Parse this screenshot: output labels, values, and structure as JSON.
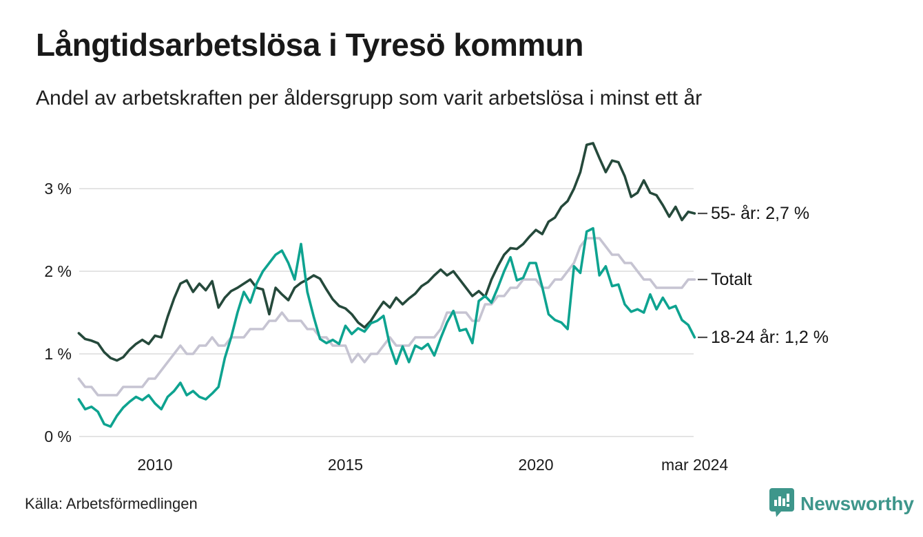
{
  "header": {
    "title": "Långtidsarbetslösa i Tyresö kommun",
    "subtitle": "Andel av arbetskraften per åldersgrupp som varit arbetslösa i minst ett år"
  },
  "chart_data": {
    "type": "line",
    "title": "Långtidsarbetslösa i Tyresö kommun",
    "subtitle": "Andel av arbetskraften per åldersgrupp som varit arbetslösa i minst ett år",
    "unit": "% av arbetskraften",
    "x_start_year": 2008,
    "x_step_years": 0.166667,
    "x_end_label_year": 2024.17,
    "grid": true,
    "legend_position": "right-end-labels",
    "colors": {
      "age_55": "#25493b",
      "total": "#c6c4d2",
      "age_18_24": "#0ea390",
      "gridline": "#e4e4e4",
      "legend_dash": "#4d4d4d",
      "brand_teal": "#3e968b"
    },
    "y_axis": {
      "range": [
        0,
        3.7
      ],
      "ticks": [
        {
          "label": "0 %",
          "value": 0
        },
        {
          "label": "1 %",
          "value": 1
        },
        {
          "label": "2 %",
          "value": 2
        },
        {
          "label": "3 %",
          "value": 3
        }
      ]
    },
    "x_axis": {
      "ticks": [
        {
          "label": "2010",
          "year": 2010
        },
        {
          "label": "2015",
          "year": 2015
        },
        {
          "label": "2020",
          "year": 2020
        },
        {
          "label": "mar 2024",
          "year": 2024.17
        }
      ]
    },
    "series": [
      {
        "id": "55-ar",
        "name": "55- år",
        "end_label": "55- år: 2,7 %",
        "last_value_label": "2,7 %",
        "color": "#25493b",
        "values": [
          1.25,
          1.18,
          1.16,
          1.13,
          1.02,
          0.95,
          0.92,
          0.96,
          1.05,
          1.12,
          1.17,
          1.12,
          1.22,
          1.2,
          1.45,
          1.67,
          1.85,
          1.89,
          1.75,
          1.85,
          1.77,
          1.88,
          1.56,
          1.68,
          1.76,
          1.8,
          1.85,
          1.9,
          1.8,
          1.78,
          1.48,
          1.8,
          1.72,
          1.65,
          1.8,
          1.86,
          1.9,
          1.95,
          1.91,
          1.78,
          1.66,
          1.58,
          1.55,
          1.48,
          1.38,
          1.32,
          1.4,
          1.52,
          1.63,
          1.56,
          1.68,
          1.6,
          1.67,
          1.73,
          1.82,
          1.87,
          1.95,
          2.02,
          1.95,
          2.0,
          1.9,
          1.8,
          1.7,
          1.76,
          1.69,
          1.9,
          2.06,
          2.2,
          2.28,
          2.27,
          2.33,
          2.42,
          2.5,
          2.45,
          2.6,
          2.65,
          2.78,
          2.85,
          3.0,
          3.2,
          3.53,
          3.55,
          3.37,
          3.2,
          3.34,
          3.32,
          3.15,
          2.9,
          2.95,
          3.1,
          2.95,
          2.92,
          2.8,
          2.66,
          2.78,
          2.62,
          2.72,
          2.7
        ]
      },
      {
        "id": "totalt",
        "name": "Totalt",
        "end_label": "Totalt",
        "last_value_label": "1,9 %",
        "color": "#c6c4d2",
        "values": [
          0.7,
          0.6,
          0.6,
          0.5,
          0.5,
          0.5,
          0.5,
          0.6,
          0.6,
          0.6,
          0.6,
          0.7,
          0.7,
          0.8,
          0.9,
          1.0,
          1.1,
          1.0,
          1.0,
          1.1,
          1.1,
          1.2,
          1.1,
          1.1,
          1.2,
          1.2,
          1.2,
          1.3,
          1.3,
          1.3,
          1.4,
          1.4,
          1.5,
          1.4,
          1.4,
          1.4,
          1.3,
          1.3,
          1.2,
          1.2,
          1.1,
          1.1,
          1.1,
          0.9,
          1.0,
          0.9,
          1.0,
          1.0,
          1.1,
          1.2,
          1.1,
          1.1,
          1.1,
          1.2,
          1.2,
          1.2,
          1.2,
          1.3,
          1.5,
          1.5,
          1.5,
          1.5,
          1.4,
          1.4,
          1.6,
          1.6,
          1.7,
          1.7,
          1.8,
          1.8,
          1.9,
          1.9,
          1.9,
          1.8,
          1.8,
          1.9,
          1.9,
          2.0,
          2.1,
          2.3,
          2.4,
          2.4,
          2.4,
          2.3,
          2.2,
          2.2,
          2.1,
          2.1,
          2.0,
          1.9,
          1.9,
          1.8,
          1.8,
          1.8,
          1.8,
          1.8,
          1.9,
          1.9
        ]
      },
      {
        "id": "18-24-ar",
        "name": "18-24 år",
        "end_label": "18-24 år: 1,2 %",
        "last_value_label": "1,2 %",
        "color": "#0ea390",
        "values": [
          0.45,
          0.33,
          0.36,
          0.3,
          0.15,
          0.12,
          0.25,
          0.35,
          0.42,
          0.48,
          0.44,
          0.5,
          0.4,
          0.33,
          0.48,
          0.55,
          0.65,
          0.5,
          0.55,
          0.48,
          0.45,
          0.52,
          0.6,
          0.95,
          1.2,
          1.5,
          1.75,
          1.62,
          1.85,
          2.0,
          2.1,
          2.2,
          2.25,
          2.1,
          1.9,
          2.33,
          1.75,
          1.45,
          1.18,
          1.13,
          1.17,
          1.12,
          1.34,
          1.24,
          1.31,
          1.27,
          1.37,
          1.4,
          1.46,
          1.1,
          0.88,
          1.09,
          0.9,
          1.1,
          1.06,
          1.12,
          0.98,
          1.19,
          1.38,
          1.52,
          1.28,
          1.3,
          1.13,
          1.64,
          1.7,
          1.62,
          1.8,
          2.0,
          2.17,
          1.89,
          1.92,
          2.1,
          2.1,
          1.81,
          1.48,
          1.41,
          1.38,
          1.3,
          2.06,
          1.98,
          2.48,
          2.52,
          1.95,
          2.06,
          1.82,
          1.84,
          1.6,
          1.51,
          1.54,
          1.5,
          1.72,
          1.54,
          1.68,
          1.55,
          1.58,
          1.41,
          1.35,
          1.2
        ]
      }
    ]
  },
  "footer": {
    "source": "Källa: Arbetsförmedlingen",
    "logo_text": "Newsworthy"
  }
}
